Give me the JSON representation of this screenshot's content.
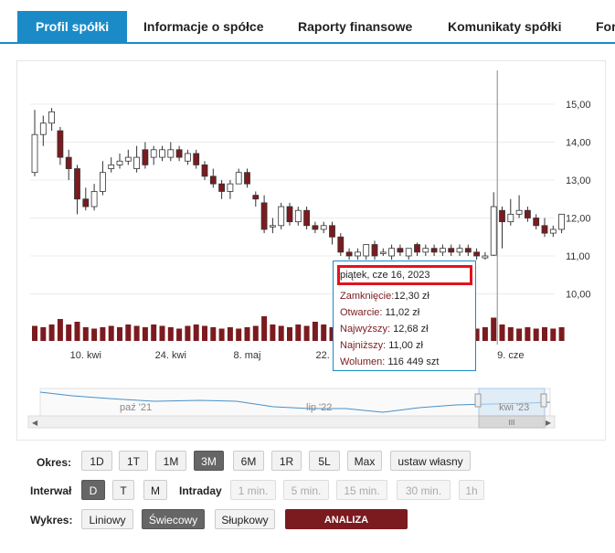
{
  "tabs": [
    {
      "label": "Profil spółki",
      "active": true
    },
    {
      "label": "Informacje o spółce",
      "active": false
    },
    {
      "label": "Raporty finansowe",
      "active": false
    },
    {
      "label": "Komunikaty spółki",
      "active": false
    },
    {
      "label": "For",
      "active": false
    }
  ],
  "tooltip": {
    "date": "piątek, cze 16, 2023",
    "close_label": "Zamknięcie:",
    "close_value": "12,30 zł",
    "open_label": "Otwarcie:",
    "open_value": "11,02 zł",
    "high_label": "Najwyższy:",
    "high_value": "12,68 zł",
    "low_label": "Najniższy:",
    "low_value": "11,00 zł",
    "volume_label": "Wolumen:",
    "volume_value": "116 449 szt"
  },
  "navigator": {
    "labels": [
      "paź '21",
      "lip '22",
      "kwi '23"
    ],
    "scroll_grip": "III",
    "left_arrow": "◀",
    "right_arrow": "▶"
  },
  "colors": {
    "up": "#ffffff",
    "down": "#7b1b1f",
    "accent": "#1a8bc7",
    "highlight": "#e0141e"
  },
  "controls": {
    "okres": {
      "label": "Okres:",
      "buttons": [
        "1D",
        "1T",
        "1M",
        "3M",
        "6M",
        "1R",
        "5L",
        "Max",
        "ustaw własny"
      ],
      "selected": "3M"
    },
    "interwal": {
      "label": "Interwał",
      "buttons": [
        "D",
        "T",
        "M"
      ],
      "selected": "D",
      "intraday_label": "Intraday",
      "intraday_buttons": [
        "1 min.",
        "5 min.",
        "15 min.",
        "30 min.",
        "1h"
      ]
    },
    "wykres": {
      "label": "Wykres:",
      "buttons": [
        "Liniowy",
        "Świecowy",
        "Słupkowy"
      ],
      "selected": "Świecowy",
      "analysis": "ANALIZA TECHNICZNA"
    }
  },
  "chart_data": {
    "type": "candlestick",
    "ylim": [
      9.6,
      15.4
    ],
    "y_ticks": [
      "15,00",
      "14,00",
      "13,00",
      "12,00",
      "11,00",
      "10,00"
    ],
    "y_tick_values": [
      15,
      14,
      13,
      12,
      11,
      10
    ],
    "x_ticks": [
      {
        "label": "10. kwi",
        "index": 6
      },
      {
        "label": "24. kwi",
        "index": 16
      },
      {
        "label": "8. maj",
        "index": 25
      },
      {
        "label": "22. maj",
        "index": 35
      },
      {
        "label": "9. cze",
        "index": 56
      }
    ],
    "candles": [
      [
        13.2,
        14.2,
        14.85,
        13.1
      ],
      [
        14.2,
        14.5,
        14.7,
        13.9
      ],
      [
        14.5,
        14.8,
        14.9,
        14.3
      ],
      [
        14.3,
        13.6,
        14.4,
        13.4
      ],
      [
        13.6,
        13.3,
        13.8,
        13.0
      ],
      [
        13.3,
        12.5,
        13.4,
        12.1
      ],
      [
        12.5,
        12.3,
        12.8,
        12.2
      ],
      [
        12.3,
        12.7,
        12.9,
        12.2
      ],
      [
        12.7,
        13.2,
        13.5,
        12.6
      ],
      [
        13.3,
        13.4,
        13.6,
        13.2
      ],
      [
        13.4,
        13.5,
        13.7,
        13.3
      ],
      [
        13.5,
        13.6,
        13.8,
        13.4
      ],
      [
        13.3,
        13.6,
        13.9,
        13.2
      ],
      [
        13.8,
        13.4,
        14.0,
        13.3
      ],
      [
        13.6,
        13.8,
        13.9,
        13.4
      ],
      [
        13.6,
        13.8,
        13.9,
        13.5
      ],
      [
        13.6,
        13.8,
        14.0,
        13.5
      ],
      [
        13.8,
        13.6,
        13.9,
        13.5
      ],
      [
        13.5,
        13.7,
        13.8,
        13.4
      ],
      [
        13.7,
        13.4,
        13.8,
        13.3
      ],
      [
        13.4,
        13.1,
        13.5,
        13.0
      ],
      [
        13.1,
        12.9,
        13.3,
        12.8
      ],
      [
        12.9,
        12.7,
        13.0,
        12.5
      ],
      [
        12.7,
        12.9,
        13.0,
        12.5
      ],
      [
        12.9,
        13.2,
        13.3,
        12.9
      ],
      [
        13.2,
        12.9,
        13.3,
        12.8
      ],
      [
        12.6,
        12.5,
        12.7,
        12.3
      ],
      [
        12.4,
        11.7,
        12.6,
        11.6
      ],
      [
        11.8,
        11.8,
        12.0,
        11.6
      ],
      [
        11.8,
        12.3,
        12.4,
        11.7
      ],
      [
        12.3,
        11.9,
        12.4,
        11.8
      ],
      [
        11.9,
        12.2,
        12.3,
        11.8
      ],
      [
        12.2,
        11.8,
        12.3,
        11.7
      ],
      [
        11.8,
        11.7,
        11.9,
        11.6
      ],
      [
        11.7,
        11.8,
        11.9,
        11.6
      ],
      [
        11.8,
        11.5,
        11.9,
        11.3
      ],
      [
        11.5,
        11.1,
        11.6,
        11.0
      ],
      [
        11.1,
        11.0,
        11.2,
        10.9
      ],
      [
        11.0,
        11.1,
        11.2,
        10.9
      ],
      [
        11.0,
        11.3,
        11.3,
        10.9
      ],
      [
        11.3,
        11.0,
        11.4,
        10.9
      ],
      [
        11.1,
        11.1,
        11.2,
        11.0
      ],
      [
        11.0,
        11.2,
        11.3,
        10.9
      ],
      [
        11.2,
        11.1,
        11.3,
        11.0
      ],
      [
        11.0,
        11.2,
        11.2,
        10.9
      ],
      [
        11.3,
        11.1,
        11.35,
        11.0
      ],
      [
        11.1,
        11.2,
        11.3,
        11.0
      ],
      [
        11.2,
        11.1,
        11.3,
        11.0
      ],
      [
        11.1,
        11.2,
        11.3,
        11.0
      ],
      [
        11.2,
        11.1,
        11.3,
        11.0
      ],
      [
        11.1,
        11.2,
        11.3,
        11.0
      ],
      [
        11.2,
        11.1,
        11.3,
        11.0
      ],
      [
        11.1,
        11.0,
        11.2,
        10.9
      ],
      [
        10.95,
        11.0,
        11.1,
        10.9
      ],
      [
        11.02,
        12.3,
        12.68,
        11.0
      ],
      [
        12.2,
        11.9,
        12.3,
        11.2
      ],
      [
        11.9,
        12.1,
        12.5,
        11.8
      ],
      [
        12.1,
        12.2,
        12.6,
        12.0
      ],
      [
        12.2,
        12.0,
        12.3,
        11.9
      ],
      [
        12.0,
        11.8,
        12.1,
        11.7
      ],
      [
        11.8,
        11.6,
        12.0,
        11.5
      ],
      [
        11.6,
        11.7,
        11.8,
        11.5
      ],
      [
        11.7,
        12.1,
        12.1,
        11.6
      ]
    ],
    "volumes": [
      0.55,
      0.5,
      0.6,
      0.8,
      0.6,
      0.7,
      0.5,
      0.45,
      0.5,
      0.55,
      0.5,
      0.6,
      0.55,
      0.5,
      0.6,
      0.55,
      0.5,
      0.45,
      0.55,
      0.6,
      0.55,
      0.5,
      0.45,
      0.5,
      0.45,
      0.5,
      0.55,
      0.9,
      0.6,
      0.55,
      0.5,
      0.6,
      0.55,
      0.7,
      0.6,
      0.5,
      0.55,
      0.45,
      0.5,
      0.45,
      0.5,
      0.45,
      0.5,
      0.5,
      0.45,
      0.5,
      0.45,
      0.5,
      0.45,
      0.5,
      0.45,
      0.5,
      0.45,
      0.5,
      0.85,
      0.6,
      0.5,
      0.45,
      0.5,
      0.45,
      0.5,
      0.45,
      0.5
    ],
    "crosshair_index": 54
  }
}
